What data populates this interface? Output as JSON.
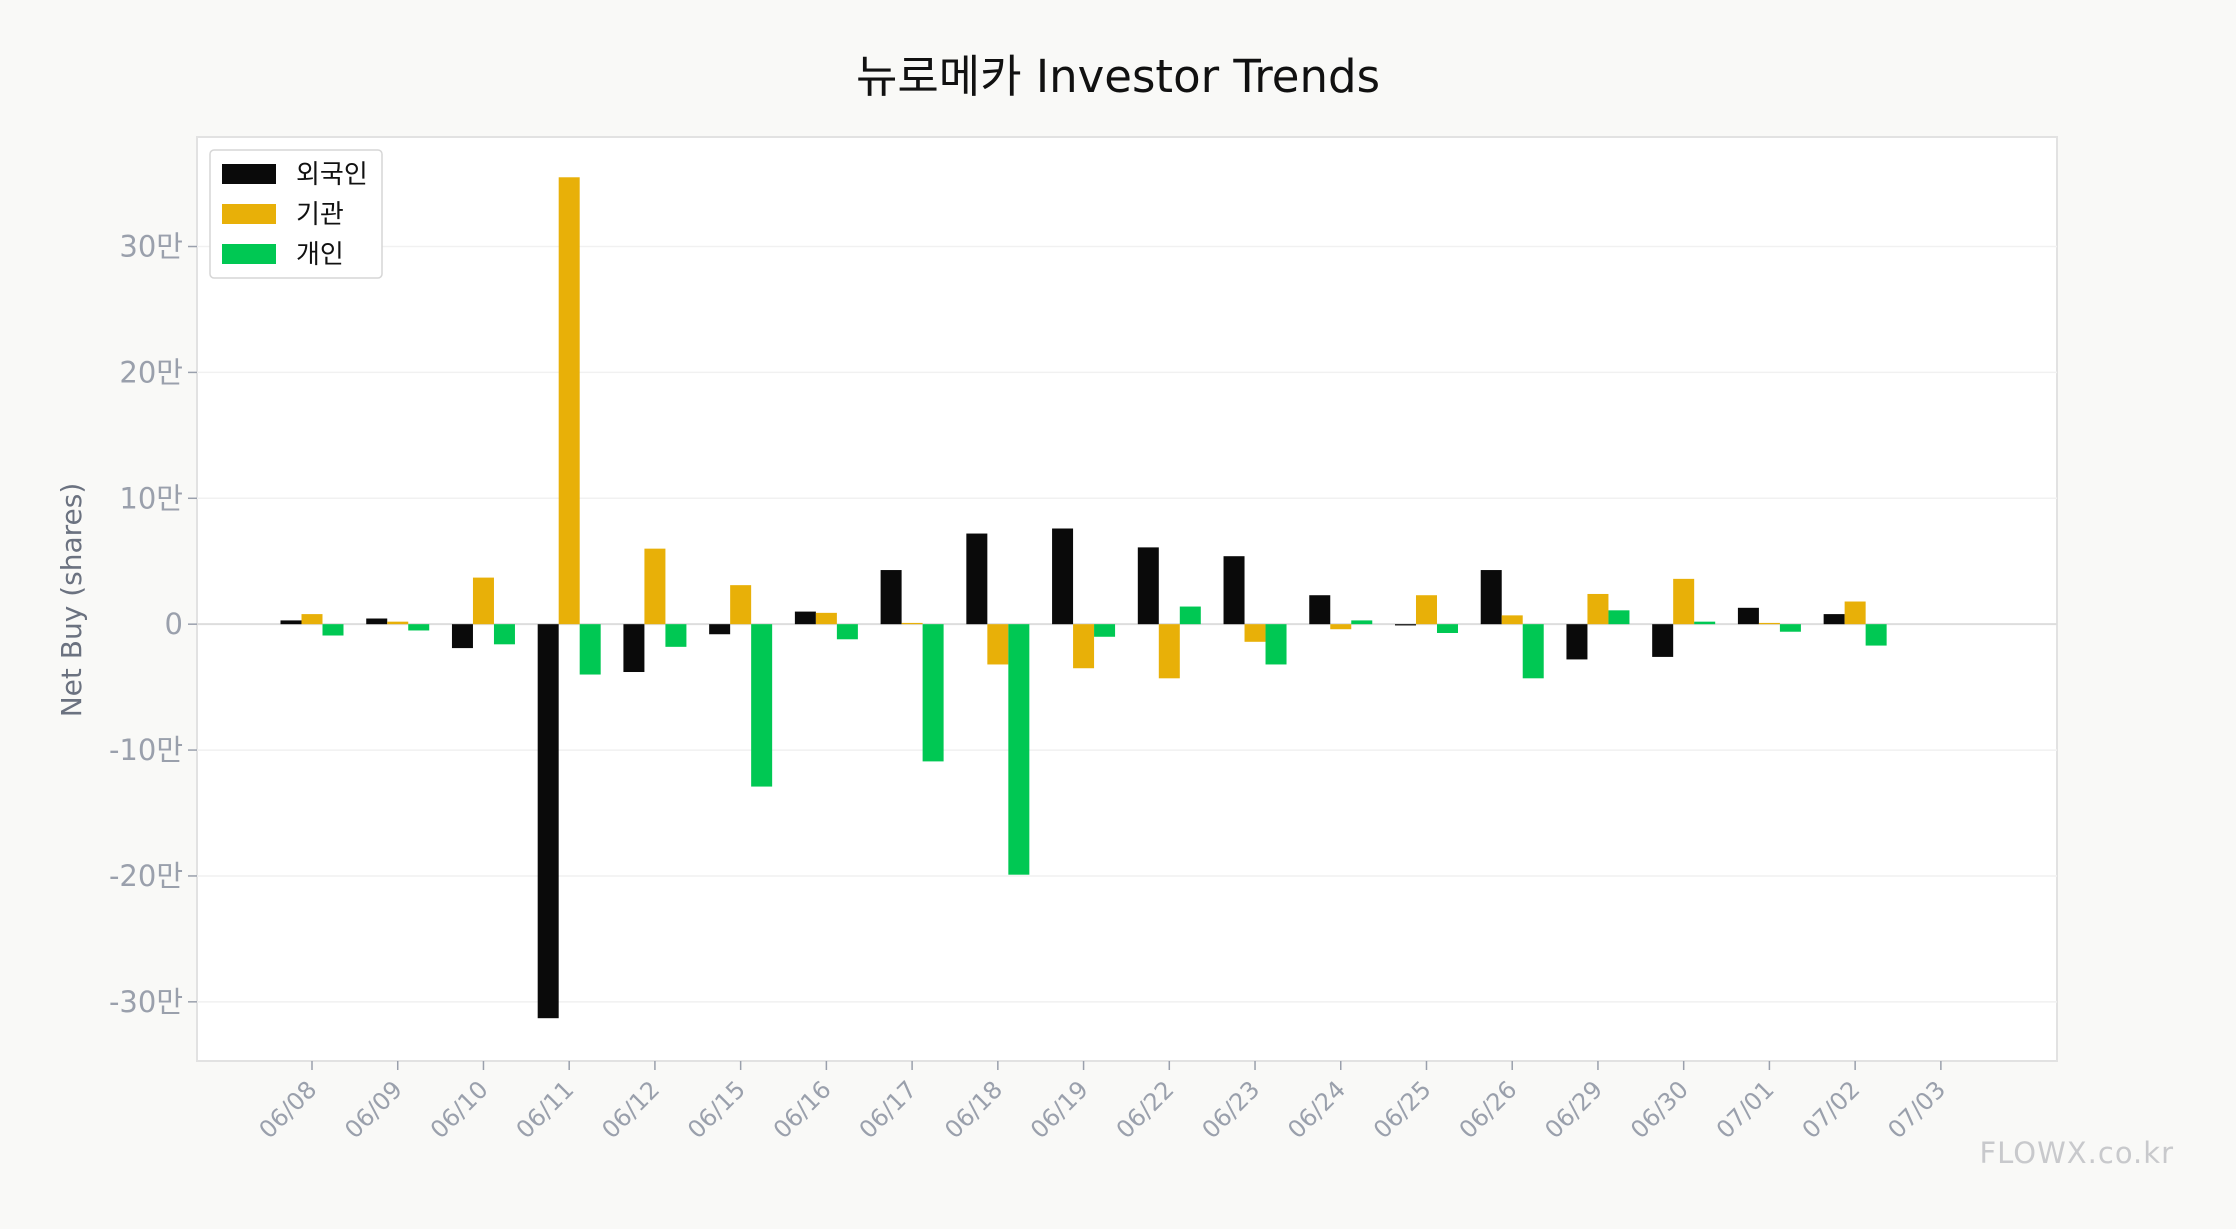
{
  "chart_data": {
    "type": "bar",
    "title": "뉴로메카 Investor Trends",
    "ylabel": "Net Buy (shares)",
    "xlabel": "",
    "categories": [
      "06/08",
      "06/09",
      "06/10",
      "06/11",
      "06/12",
      "06/15",
      "06/16",
      "06/17",
      "06/18",
      "06/19",
      "06/22",
      "06/23",
      "06/24",
      "06/25",
      "06/26",
      "06/29",
      "06/30",
      "07/01",
      "07/02",
      "07/03"
    ],
    "series": [
      {
        "name": "외국인",
        "color": "#0a0a0a",
        "values": [
          3000,
          4500,
          -19000,
          -313000,
          -38000,
          -8000,
          10000,
          43000,
          72000,
          76000,
          61000,
          54000,
          23000,
          -1000,
          43000,
          -28000,
          -26000,
          13000,
          8000,
          0
        ]
      },
      {
        "name": "기관",
        "color": "#e8b008",
        "values": [
          8000,
          2000,
          37000,
          355000,
          60000,
          31000,
          9000,
          1000,
          -32000,
          -35000,
          -43000,
          -14000,
          -4000,
          23000,
          7000,
          24000,
          36000,
          1000,
          18000,
          0
        ]
      },
      {
        "name": "개인",
        "color": "#00c853",
        "values": [
          -9000,
          -5000,
          -16000,
          -40000,
          -18000,
          -129000,
          -12000,
          -109000,
          -199000,
          -10000,
          14000,
          -32000,
          3000,
          -7000,
          -43000,
          11000,
          2000,
          -6000,
          -17000,
          0
        ]
      }
    ],
    "ylim": [
      -347000,
      387000
    ],
    "yticks": [
      {
        "value": -300000,
        "label": "-30만"
      },
      {
        "value": -200000,
        "label": "-20만"
      },
      {
        "value": -100000,
        "label": "-10만"
      },
      {
        "value": 0,
        "label": "0"
      },
      {
        "value": 100000,
        "label": "10만"
      },
      {
        "value": 200000,
        "label": "20만"
      },
      {
        "value": 300000,
        "label": "30만"
      }
    ],
    "grid": true,
    "legend_position": "top-left"
  },
  "watermark": "FLOWX.co.kr"
}
